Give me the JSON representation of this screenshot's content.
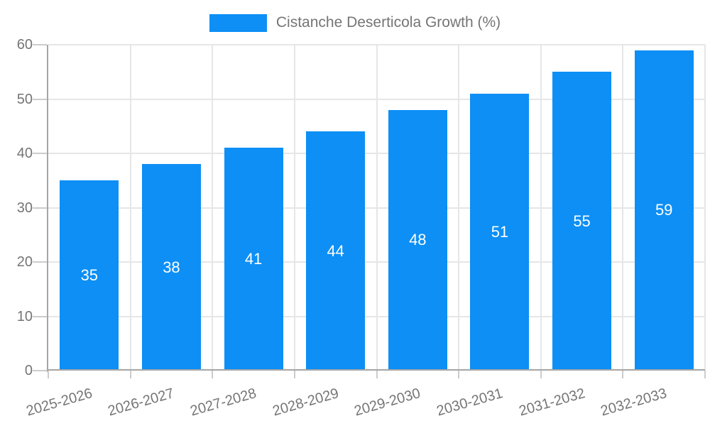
{
  "chart_data": {
    "type": "bar",
    "title": "Cistanche Deserticola Growth (%)",
    "categories": [
      "2025-2026",
      "2026-2027",
      "2027-2028",
      "2028-2029",
      "2029-2030",
      "2030-2031",
      "2031-2032",
      "2032-2033"
    ],
    "values": [
      35,
      38,
      41,
      44,
      48,
      51,
      55,
      59
    ],
    "xlabel": "",
    "ylabel": "",
    "ylim": [
      0,
      60
    ],
    "yticks": [
      0,
      10,
      20,
      30,
      40,
      50,
      60
    ],
    "grid": true,
    "legend_position": "top-center",
    "x_label_rotation_deg": -16,
    "colors": {
      "bar": "#0D8FF5",
      "value_label": "#FFFFFF",
      "axis_text": "#757575",
      "axis_line": "#A6A6A6",
      "tick": "#CCCCCC",
      "gridline": "#E6E6E6",
      "background": "#FFFFFF"
    }
  }
}
